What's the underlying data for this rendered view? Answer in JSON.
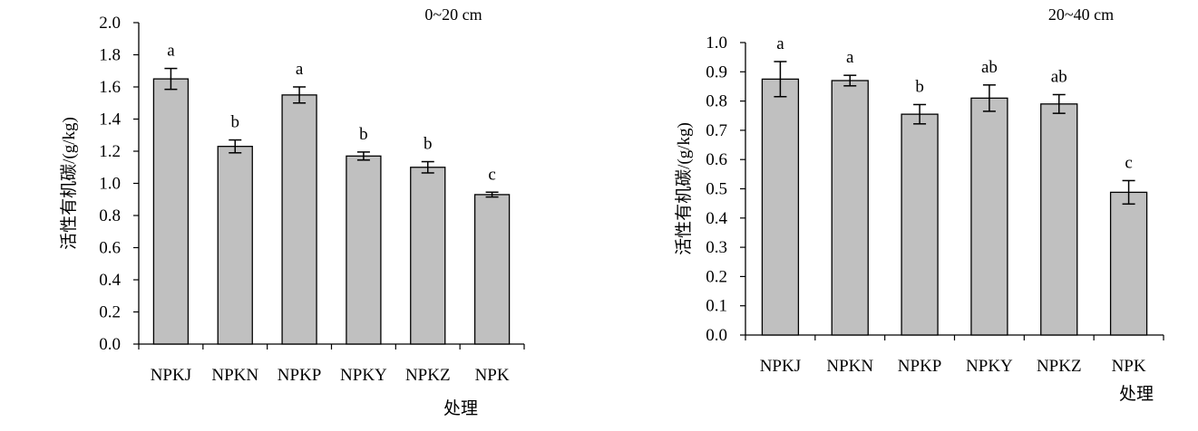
{
  "chart_data": [
    {
      "type": "bar",
      "title": "0~20 cm",
      "xlabel": "处理",
      "ylabel": "活性有机碳/(g/kg)",
      "categories": [
        "NPKJ",
        "NPKN",
        "NPKP",
        "NPKY",
        "NPKZ",
        "NPK"
      ],
      "values": [
        1.65,
        1.23,
        1.55,
        1.17,
        1.1,
        0.93
      ],
      "errors": [
        0.065,
        0.04,
        0.05,
        0.025,
        0.035,
        0.015
      ],
      "significance": [
        "a",
        "b",
        "a",
        "b",
        "b",
        "c"
      ],
      "ylim": [
        0,
        2.0
      ],
      "yticks": [
        "0.0",
        "0.2",
        "0.4",
        "0.6",
        "0.8",
        "1.0",
        "1.2",
        "1.4",
        "1.6",
        "1.8",
        "2.0"
      ],
      "bar_color": "#c0c0c0",
      "grid": false,
      "legend": "none"
    },
    {
      "type": "bar",
      "title": "20~40 cm",
      "xlabel": "处理",
      "ylabel": "活性有机碳/(g/kg)",
      "categories": [
        "NPKJ",
        "NPKN",
        "NPKP",
        "NPKY",
        "NPKZ",
        "NPK"
      ],
      "values": [
        0.875,
        0.87,
        0.755,
        0.81,
        0.79,
        0.488
      ],
      "errors": [
        0.06,
        0.018,
        0.033,
        0.045,
        0.032,
        0.04
      ],
      "significance": [
        "a",
        "a",
        "b",
        "ab",
        "ab",
        "c"
      ],
      "ylim": [
        0,
        1.0
      ],
      "yticks": [
        "0.0",
        "0.1",
        "0.2",
        "0.3",
        "0.4",
        "0.5",
        "0.6",
        "0.7",
        "0.8",
        "0.9",
        "1.0"
      ],
      "bar_color": "#c0c0c0",
      "grid": false,
      "legend": "none"
    }
  ]
}
